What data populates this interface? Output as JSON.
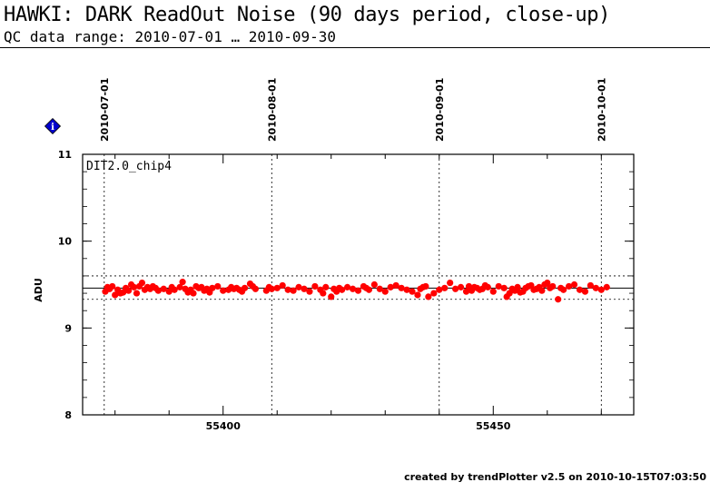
{
  "header": {
    "title": "HAWKI: DARK ReadOut Noise (90 days period, close-up)",
    "subtitle": "QC data range: 2010-07-01 … 2010-09-30"
  },
  "footer": {
    "text": "created by trendPlotter v2.5 on 2010-10-15T07:03:50"
  },
  "info_icon": {
    "glyph": "i",
    "color": "#0000cc"
  },
  "chart_data": {
    "type": "scatter",
    "panel_label": "DIT2.0_chip4",
    "ylabel": "ADU",
    "xlim": [
      55374,
      55476
    ],
    "ylim": [
      8,
      11
    ],
    "y_ticks": [
      8,
      9,
      10,
      11
    ],
    "x_ticks": [
      55400,
      55450
    ],
    "date_markers": [
      {
        "mjd": 55378,
        "label": "2010-07-01"
      },
      {
        "mjd": 55409,
        "label": "2010-08-01"
      },
      {
        "mjd": 55440,
        "label": "2010-09-01"
      },
      {
        "mjd": 55470,
        "label": "2010-10-01"
      }
    ],
    "mean_line": 9.46,
    "limit_lines": [
      9.6,
      9.33
    ],
    "grid": false,
    "point_color": "#ff0000",
    "series": [
      {
        "x": [
          55378.2,
          55378.6,
          55379.0,
          55379.5,
          55380.0,
          55380.5,
          55381.0,
          55381.5,
          55382.0,
          55382.5,
          55383.0,
          55383.5,
          55384.0,
          55384.5,
          55385.0,
          55385.5,
          55386.0,
          55386.5,
          55387.0,
          55387.5,
          55388.0,
          55389.0,
          55390.0,
          55390.5,
          55391.0,
          55392.0,
          55392.5,
          55393.0,
          55393.5,
          55394.0,
          55394.5,
          55395.0,
          55395.5,
          55396.0,
          55396.5,
          55397.0,
          55397.5,
          55398.0,
          55399.0,
          55400.0,
          55401.0,
          55401.5,
          55402.0,
          55402.5,
          55403.0,
          55403.5,
          55404.0,
          55405.0,
          55405.5,
          55406.0,
          55408.0,
          55408.5,
          55409.0,
          55410.0,
          55411.0,
          55412.0,
          55413.0,
          55414.0,
          55415.0,
          55416.0,
          55417.0,
          55418.0,
          55418.5,
          55419.0,
          55420.0,
          55420.5,
          55421.0,
          55421.5,
          55422.0,
          55423.0,
          55424.0,
          55425.0,
          55426.0,
          55426.5,
          55427.0,
          55428.0,
          55429.0,
          55430.0,
          55431.0,
          55432.0,
          55433.0,
          55434.0,
          55435.0,
          55436.0,
          55436.5,
          55437.0,
          55437.5,
          55438.0,
          55439.0,
          55440.0,
          55441.0,
          55442.0,
          55443.0,
          55444.0,
          55445.0,
          55445.5,
          55446.0,
          55446.5,
          55447.0,
          55447.5,
          55448.0,
          55448.5,
          55449.0,
          55450.0,
          55451.0,
          55452.0,
          55452.5,
          55453.0,
          55453.5,
          55454.0,
          55454.5,
          55455.0,
          55455.5,
          55456.0,
          55456.5,
          55457.0,
          55457.5,
          55458.0,
          55458.5,
          55459.0,
          55459.5,
          55460.0,
          55460.5,
          55461.0,
          55462.0,
          55462.5,
          55463.0,
          55464.0,
          55465.0,
          55466.0,
          55467.0,
          55468.0,
          55469.0,
          55470.0,
          55471.0
        ],
        "y": [
          9.42,
          9.47,
          9.45,
          9.48,
          9.38,
          9.44,
          9.4,
          9.41,
          9.46,
          9.43,
          9.5,
          9.47,
          9.4,
          9.48,
          9.52,
          9.44,
          9.47,
          9.45,
          9.48,
          9.46,
          9.43,
          9.45,
          9.42,
          9.47,
          9.44,
          9.47,
          9.53,
          9.45,
          9.41,
          9.44,
          9.4,
          9.48,
          9.46,
          9.47,
          9.43,
          9.45,
          9.41,
          9.46,
          9.48,
          9.43,
          9.44,
          9.47,
          9.45,
          9.46,
          9.44,
          9.42,
          9.46,
          9.51,
          9.48,
          9.45,
          9.43,
          9.47,
          9.45,
          9.46,
          9.49,
          9.44,
          9.43,
          9.47,
          9.45,
          9.42,
          9.48,
          9.44,
          9.4,
          9.47,
          9.36,
          9.45,
          9.42,
          9.46,
          9.44,
          9.47,
          9.45,
          9.43,
          9.48,
          9.46,
          9.44,
          9.5,
          9.45,
          9.42,
          9.47,
          9.49,
          9.46,
          9.44,
          9.42,
          9.38,
          9.45,
          9.47,
          9.48,
          9.36,
          9.4,
          9.44,
          9.46,
          9.52,
          9.45,
          9.47,
          9.42,
          9.48,
          9.43,
          9.47,
          9.46,
          9.44,
          9.45,
          9.49,
          9.47,
          9.42,
          9.48,
          9.46,
          9.36,
          9.4,
          9.45,
          9.43,
          9.47,
          9.41,
          9.42,
          9.46,
          9.48,
          9.49,
          9.44,
          9.45,
          9.47,
          9.43,
          9.5,
          9.52,
          9.46,
          9.48,
          9.33,
          9.46,
          9.44,
          9.48,
          9.5,
          9.44,
          9.42,
          9.49,
          9.46,
          9.44,
          9.47
        ]
      }
    ]
  }
}
